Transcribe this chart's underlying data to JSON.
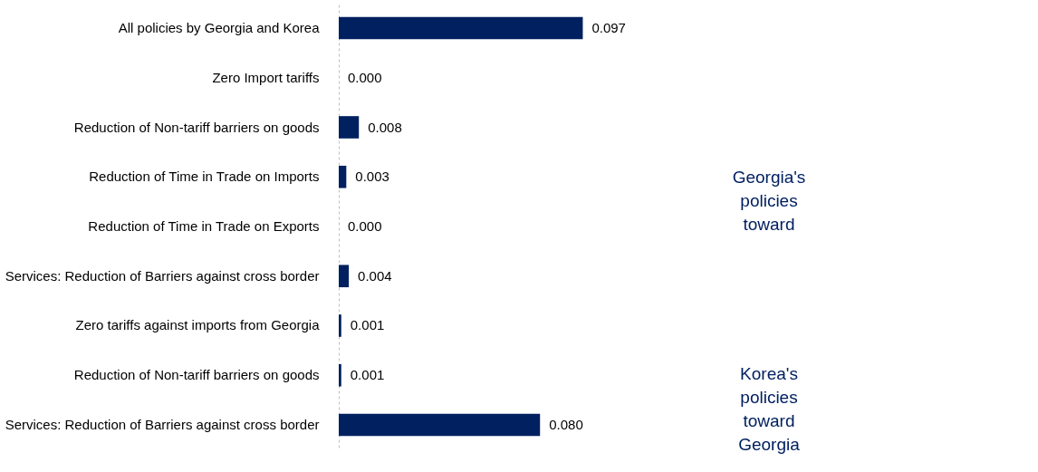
{
  "chart_data": {
    "type": "bar",
    "orientation": "horizontal",
    "categories": [
      "All policies by Georgia and Korea",
      "Zero Import tariffs",
      "Reduction of Non-tariff barriers on goods",
      "Reduction of Time in Trade on Imports",
      "Reduction of Time in Trade on Exports",
      "Services: Reduction of Barriers against cross border",
      "Zero tariffs against imports from Georgia",
      "Reduction of Non-tariff barriers on goods",
      "Services: Reduction of Barriers against cross border"
    ],
    "values": [
      0.097,
      0.0,
      0.008,
      0.003,
      0.0,
      0.004,
      0.001,
      0.001,
      0.08
    ],
    "color": "#002060",
    "value_labels": [
      "0.097",
      "0.000",
      "0.008",
      "0.003",
      "0.000",
      "0.004",
      "0.001",
      "0.001",
      "0.080"
    ],
    "annotations": [
      "Georgia's policies toward",
      "Korea's policies toward Georgia"
    ]
  }
}
